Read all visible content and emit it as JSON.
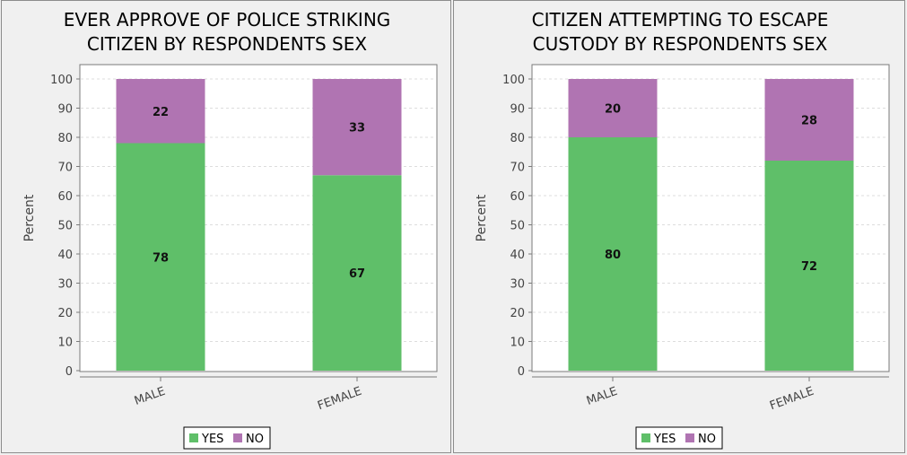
{
  "chart_data": [
    {
      "type": "bar",
      "stacked": true,
      "title": "EVER APPROVE OF POLICE STRIKING CITIZEN BY RESPONDENTS SEX",
      "title_lines": [
        "EVER APPROVE OF POLICE STRIKING",
        "CITIZEN BY RESPONDENTS SEX"
      ],
      "xlabel": "",
      "ylabel": "Percent",
      "ylim": [
        0,
        100
      ],
      "yticks": [
        0,
        10,
        20,
        30,
        40,
        50,
        60,
        70,
        80,
        90,
        100
      ],
      "grid": true,
      "legend_position": "bottom",
      "categories": [
        "MALE",
        "FEMALE"
      ],
      "series": [
        {
          "name": "YES",
          "values": [
            78,
            67
          ],
          "color": "#5fbf69"
        },
        {
          "name": "NO",
          "values": [
            22,
            33
          ],
          "color": "#b074b2"
        }
      ]
    },
    {
      "type": "bar",
      "stacked": true,
      "title": "CITIZEN ATTEMPTING TO ESCAPE CUSTODY BY RESPONDENTS SEX",
      "title_lines": [
        "CITIZEN ATTEMPTING TO ESCAPE",
        "CUSTODY BY RESPONDENTS SEX"
      ],
      "xlabel": "",
      "ylabel": "Percent",
      "ylim": [
        0,
        100
      ],
      "yticks": [
        0,
        10,
        20,
        30,
        40,
        50,
        60,
        70,
        80,
        90,
        100
      ],
      "grid": true,
      "legend_position": "bottom",
      "categories": [
        "MALE",
        "FEMALE"
      ],
      "series": [
        {
          "name": "YES",
          "values": [
            80,
            72
          ],
          "color": "#5fbf69"
        },
        {
          "name": "NO",
          "values": [
            20,
            28
          ],
          "color": "#b074b2"
        }
      ]
    }
  ]
}
